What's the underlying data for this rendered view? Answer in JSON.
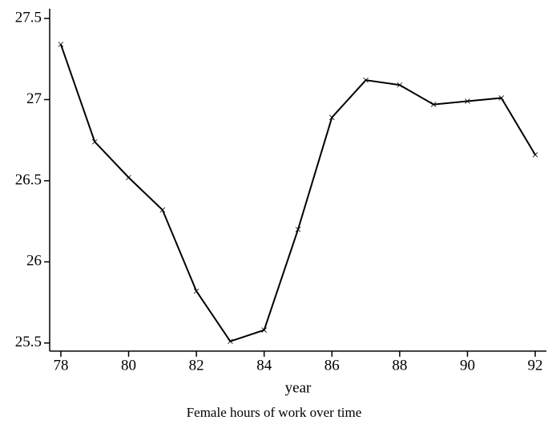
{
  "chart_data": {
    "type": "line",
    "x_label": "year",
    "caption": "Female hours of work over time",
    "x": [
      78,
      79,
      80,
      81,
      82,
      83,
      84,
      85,
      86,
      87,
      88,
      89,
      90,
      91,
      92
    ],
    "values": [
      27.34,
      26.74,
      26.52,
      26.32,
      25.82,
      25.51,
      25.58,
      26.2,
      26.89,
      27.12,
      27.09,
      26.97,
      26.99,
      27.01,
      26.66
    ],
    "color": "#000000",
    "xlim": [
      77.67,
      92.33
    ],
    "ylim": [
      25.45,
      27.56
    ],
    "xticks": [
      78,
      80,
      82,
      84,
      86,
      88,
      90,
      92
    ],
    "yticks": [
      25.5,
      26,
      26.5,
      27,
      27.5
    ],
    "grid": false
  }
}
